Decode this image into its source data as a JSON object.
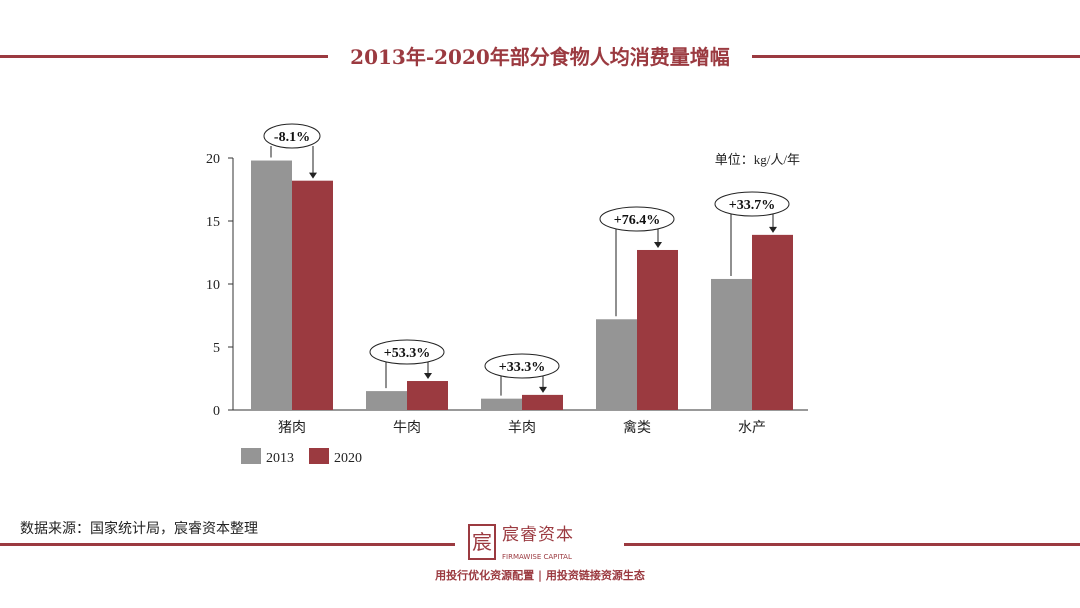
{
  "title": "2013年-2020年部分食物人均消费量增幅",
  "source": "数据来源：国家统计局，宸睿资本整理",
  "logo": {
    "cn": "宸睿资本",
    "en": "FIRMAWISE CAPITAL",
    "mark": "宸"
  },
  "slogan": "用投行优化资源配置 | 用投资链接资源生态",
  "colors": {
    "s2013": "#959595",
    "s2020": "#9b3a40",
    "accent": "#9b3a40"
  },
  "chart_data": {
    "type": "bar",
    "title": "2013年-2020年部分食物人均消费量增幅",
    "unit_label": "单位：kg/人/年",
    "categories": [
      "猪肉",
      "牛肉",
      "羊肉",
      "禽类",
      "水产"
    ],
    "series": [
      {
        "name": "2013",
        "values": [
          19.8,
          1.5,
          0.9,
          7.2,
          10.4
        ]
      },
      {
        "name": "2020",
        "values": [
          18.2,
          2.3,
          1.2,
          12.7,
          13.9
        ]
      }
    ],
    "annotations": [
      "-8.1%",
      "+53.3%",
      "+33.3%",
      "+76.4%",
      "+33.7%"
    ],
    "ylim": [
      0,
      20
    ],
    "yticks": [
      0,
      5,
      10,
      15,
      20
    ],
    "legend": "bottom-left",
    "grid": false
  }
}
